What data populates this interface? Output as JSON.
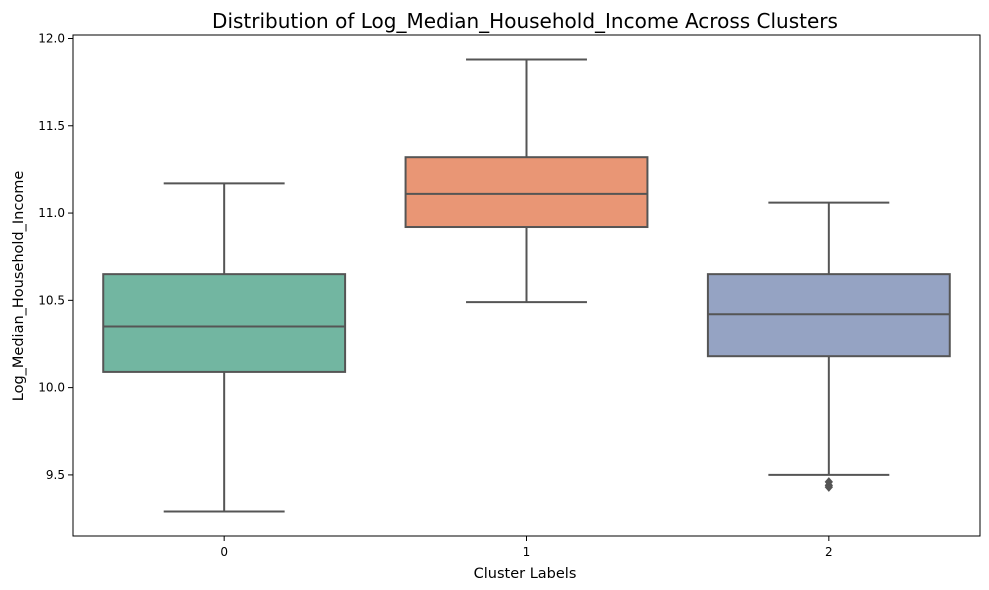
{
  "chart_data": {
    "type": "box",
    "title": "Distribution of Log_Median_Household_Income Across Clusters",
    "xlabel": "Cluster Labels",
    "ylabel": "Log_Median_Household_Income",
    "ylim": [
      9.15,
      12.02
    ],
    "yticks": [
      "9.5",
      "10.0",
      "10.5",
      "11.0",
      "11.5",
      "12.0"
    ],
    "grid": false,
    "categories": [
      "0",
      "1",
      "2"
    ],
    "boxes": [
      {
        "category": "0",
        "whisker_low": 9.29,
        "q1": 10.09,
        "median": 10.35,
        "q3": 10.65,
        "whisker_high": 11.17,
        "outliers": [],
        "color": "#72b6a1"
      },
      {
        "category": "1",
        "whisker_low": 10.49,
        "q1": 10.92,
        "median": 11.11,
        "q3": 11.32,
        "whisker_high": 11.88,
        "outliers": [],
        "color": "#e99675"
      },
      {
        "category": "2",
        "whisker_low": 9.5,
        "q1": 10.18,
        "median": 10.42,
        "q3": 10.65,
        "whisker_high": 11.06,
        "outliers": [
          9.46,
          9.44,
          9.43
        ],
        "color": "#95a3c3"
      }
    ],
    "line_color": "#555555"
  }
}
